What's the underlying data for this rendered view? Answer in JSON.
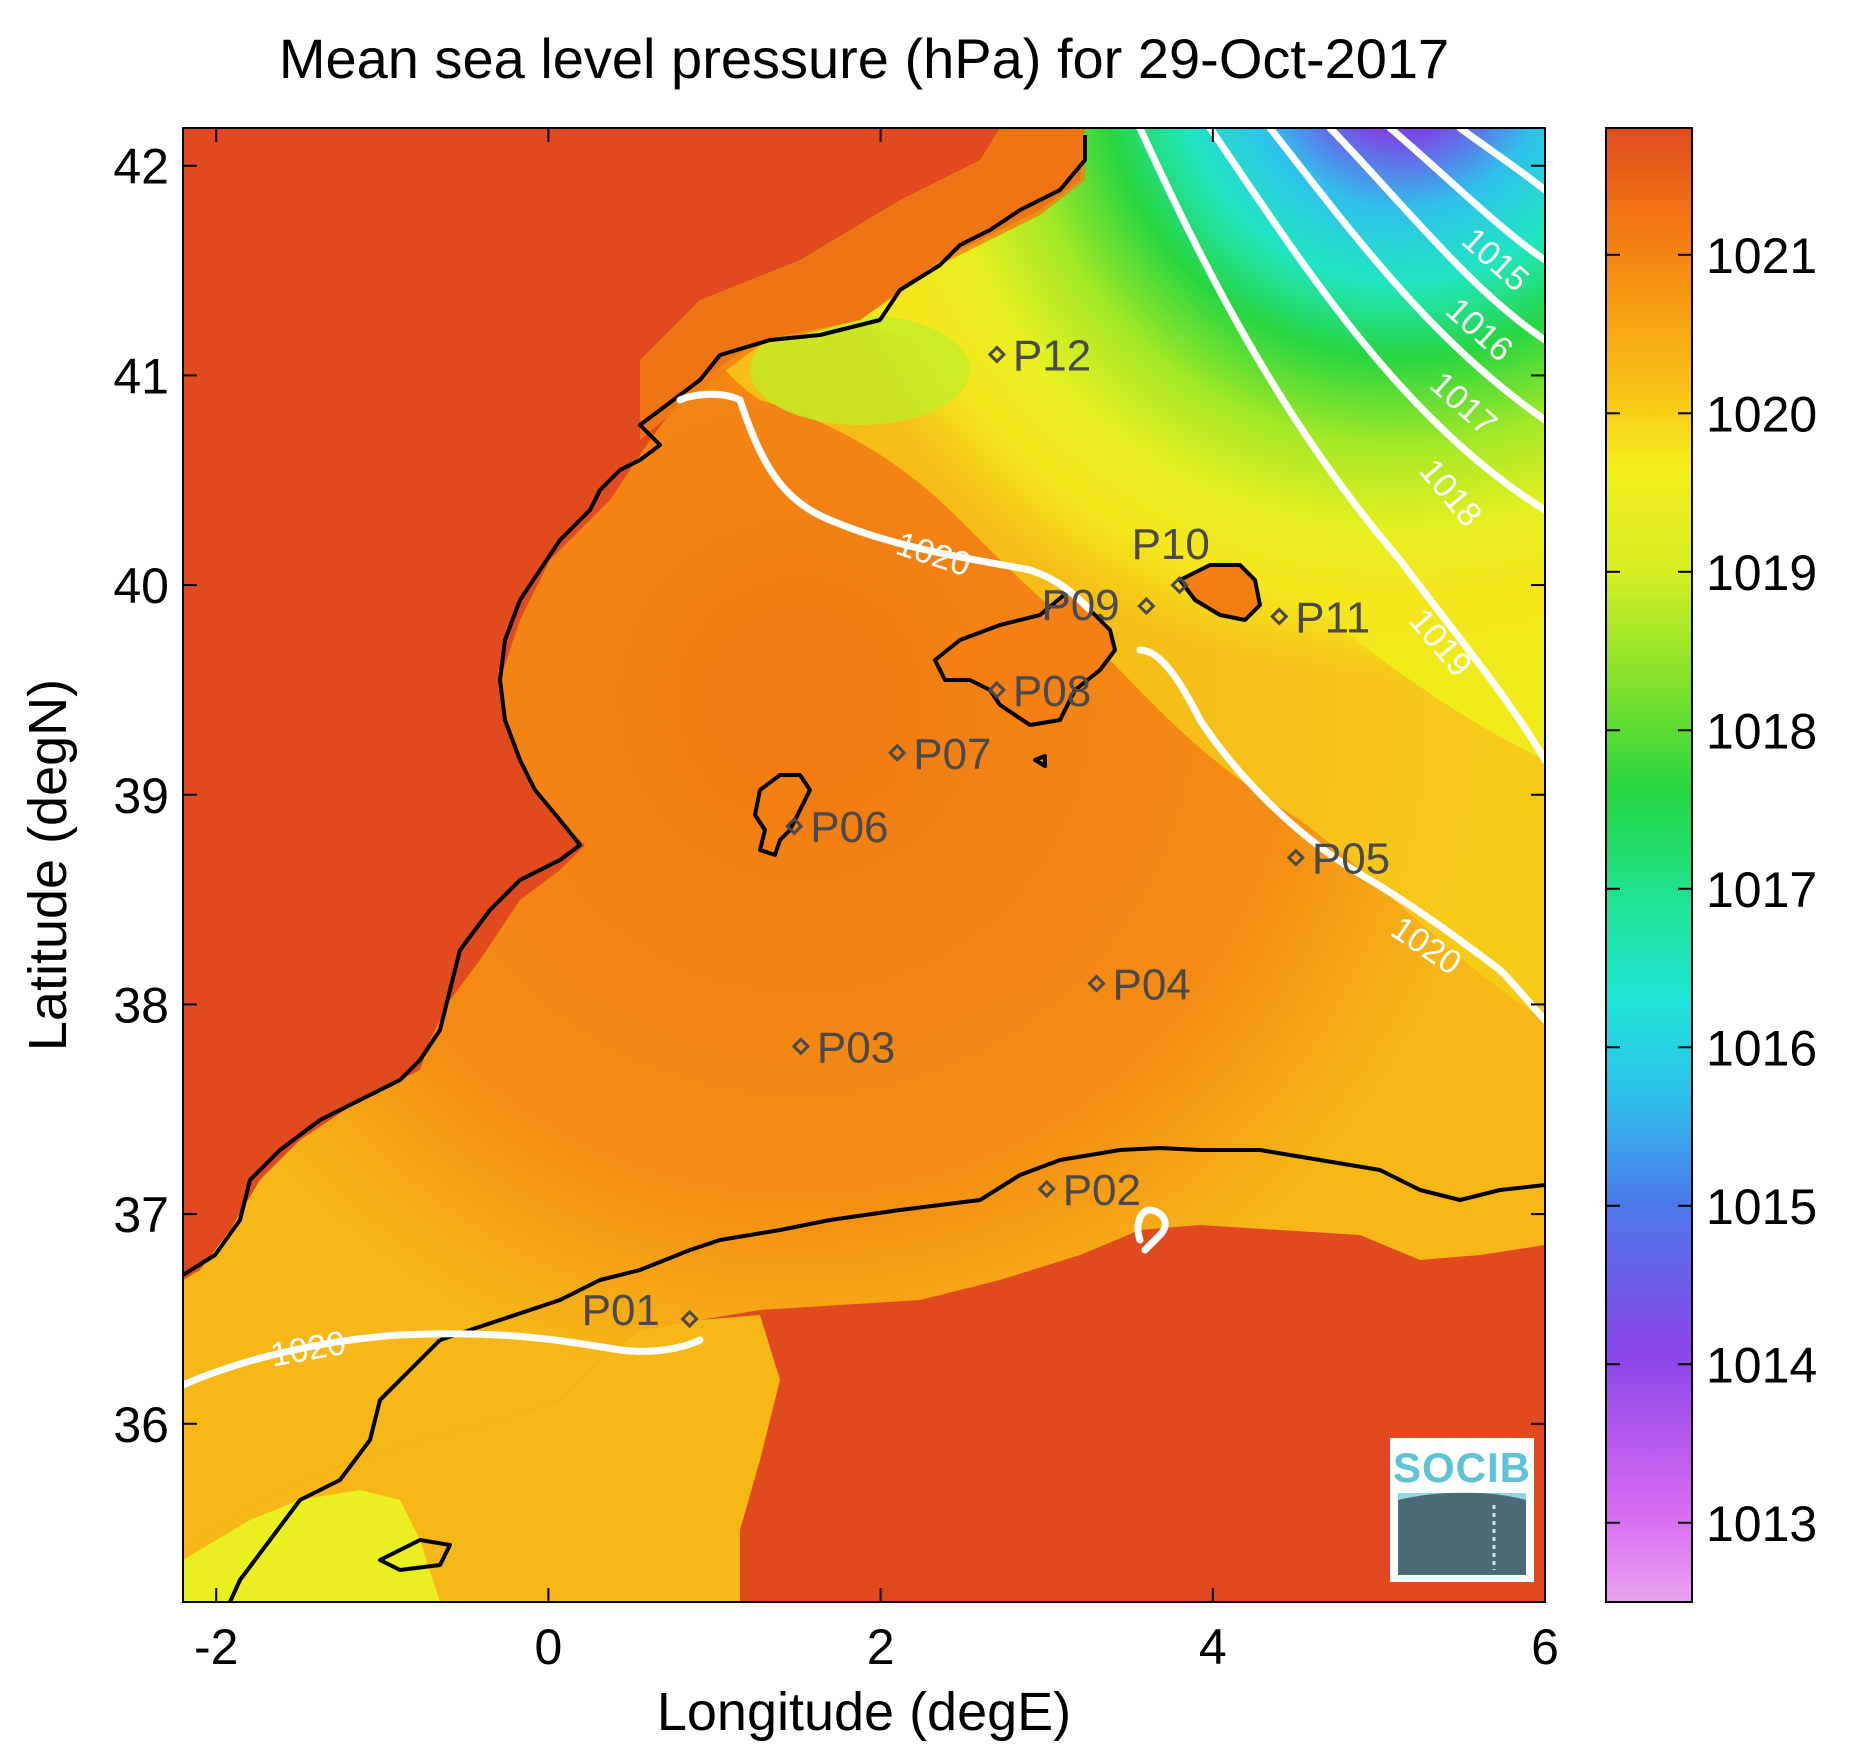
{
  "title": "Mean sea level pressure (hPa) for 29-Oct-2017",
  "xlabel": "Longitude (degE)",
  "ylabel": "Latitude (degN)",
  "x_ticks": [
    {
      "value": -2,
      "label": "-2"
    },
    {
      "value": 0,
      "label": "0"
    },
    {
      "value": 2,
      "label": "2"
    },
    {
      "value": 4,
      "label": "4"
    },
    {
      "value": 6,
      "label": "6"
    }
  ],
  "y_ticks": [
    {
      "value": 36,
      "label": "36"
    },
    {
      "value": 37,
      "label": "37"
    },
    {
      "value": 38,
      "label": "38"
    },
    {
      "value": 39,
      "label": "39"
    },
    {
      "value": 40,
      "label": "40"
    },
    {
      "value": 41,
      "label": "41"
    },
    {
      "value": 42,
      "label": "42"
    }
  ],
  "colorbar": {
    "ticks": [
      {
        "value": 1013,
        "label": "1013"
      },
      {
        "value": 1014,
        "label": "1014"
      },
      {
        "value": 1015,
        "label": "1015"
      },
      {
        "value": 1016,
        "label": "1016"
      },
      {
        "value": 1017,
        "label": "1017"
      },
      {
        "value": 1018,
        "label": "1018"
      },
      {
        "value": 1019,
        "label": "1019"
      },
      {
        "value": 1020,
        "label": "1020"
      },
      {
        "value": 1021,
        "label": "1021"
      }
    ],
    "range": [
      1012.5,
      1021.8
    ],
    "colors": [
      "#e9a3ee",
      "#c84cf2",
      "#7b46e6",
      "#3b8ee8",
      "#22d7ee",
      "#1fe8b2",
      "#27d03b",
      "#b7ee27",
      "#f4f21e",
      "#f7b415",
      "#f37e10",
      "#e34b1f"
    ]
  },
  "contour_labels": [
    {
      "text": "1015"
    },
    {
      "text": "1016"
    },
    {
      "text": "1017"
    },
    {
      "text": "1018"
    },
    {
      "text": "1019"
    },
    {
      "text": "1020"
    },
    {
      "text": "1020"
    },
    {
      "text": "1020"
    }
  ],
  "stations": [
    {
      "label": "P01",
      "lon": 0.85,
      "lat": 36.5
    },
    {
      "label": "P02",
      "lon": 3.0,
      "lat": 37.12
    },
    {
      "label": "P03",
      "lon": 1.52,
      "lat": 37.8
    },
    {
      "label": "P04",
      "lon": 3.3,
      "lat": 38.1
    },
    {
      "label": "P05",
      "lon": 4.5,
      "lat": 38.7
    },
    {
      "label": "P06",
      "lon": 1.48,
      "lat": 38.85
    },
    {
      "label": "P07",
      "lon": 2.1,
      "lat": 39.2
    },
    {
      "label": "P08",
      "lon": 2.7,
      "lat": 39.5
    },
    {
      "label": "P09",
      "lon": 3.6,
      "lat": 39.9
    },
    {
      "label": "P10",
      "lon": 3.8,
      "lat": 40.0
    },
    {
      "label": "P11",
      "lon": 4.4,
      "lat": 39.85
    },
    {
      "label": "P12",
      "lon": 2.7,
      "lat": 41.1
    }
  ],
  "logo": {
    "text": "SOCIB"
  },
  "colors": {
    "land_high": "#e04a1e",
    "sea_orange": "#f47f12",
    "contour": "#ffffff",
    "coast": "#000000",
    "station": "#4a4a4a"
  }
}
